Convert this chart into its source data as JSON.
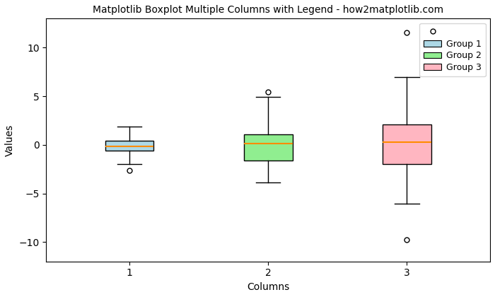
{
  "title": "Matplotlib Boxplot Multiple Columns with Legend - how2matplotlib.com",
  "xlabel": "Columns",
  "ylabel": "Values",
  "group_labels": [
    "Group 1",
    "Group 2",
    "Group 3"
  ],
  "box_colors": [
    "#add8e6",
    "#90ee90",
    "#ffb6c1"
  ],
  "median_color": "#ff8c00",
  "whisker_color": "black",
  "flier_marker": "o",
  "seed": 42,
  "n_samples": 100,
  "ylim": [
    -12,
    13
  ],
  "figsize": [
    7.0,
    4.2
  ],
  "dpi": 100,
  "bg_color": "#ffffff",
  "title_fontsize": 10,
  "box_width": 0.35
}
